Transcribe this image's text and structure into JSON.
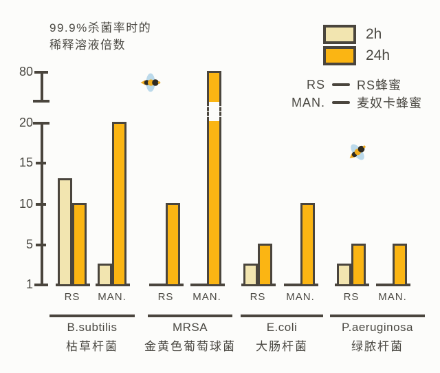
{
  "title": {
    "line1": "99.9%杀菌率时的",
    "line2": "稀释溶液倍数"
  },
  "legend": {
    "series": [
      {
        "label": "2h",
        "color": "#F2E5B0"
      },
      {
        "label": "24h",
        "color": "#FBB513"
      }
    ],
    "keys": [
      {
        "abbr": "RS",
        "name": "RS蜂蜜"
      },
      {
        "abbr": "MAN.",
        "name": "麦奴卡蜂蜜"
      }
    ]
  },
  "colors": {
    "bar_2h": "#F2E5B0",
    "bar_24h": "#FBB513",
    "axis": "#4A453D",
    "text": "#4A4842",
    "background": "#FCFCFA",
    "bee_wing": "#BBD9EA",
    "bee_dark": "#2F2B21",
    "bee_yellow": "#EDA81D"
  },
  "chart_data": {
    "type": "bar",
    "title": "99.9%杀菌率时的稀释溶液倍数",
    "xlabel": "",
    "ylabel": "稀释溶液倍数",
    "series": [
      "2h",
      "24h"
    ],
    "sub_categories": [
      "RS",
      "MAN."
    ],
    "y_ticks": [
      1,
      5,
      10,
      15,
      20,
      80
    ],
    "axis_break_between": [
      20,
      80
    ],
    "grid": false,
    "legend_position": "top-right",
    "groups": [
      {
        "name_en": "B.subtilis",
        "name_zh": "枯草杆菌",
        "values": {
          "RS": {
            "2h": 13,
            "24h": 10
          },
          "MAN.": {
            "2h": 3,
            "24h": 20
          }
        }
      },
      {
        "name_en": "MRSA",
        "name_zh": "金黄色葡萄球菌",
        "values": {
          "RS": {
            "2h": 1,
            "24h": 10
          },
          "MAN.": {
            "2h": 1,
            "24h": 80
          }
        }
      },
      {
        "name_en": "E.coli",
        "name_zh": "大肠杆菌",
        "values": {
          "RS": {
            "2h": 3,
            "24h": 5
          },
          "MAN.": {
            "2h": 1,
            "24h": 10
          }
        }
      },
      {
        "name_en": "P.aeruginosa",
        "name_zh": "绿脓杆菌",
        "values": {
          "RS": {
            "2h": 3,
            "24h": 5
          },
          "MAN.": {
            "2h": 1,
            "24h": 5
          }
        }
      }
    ]
  }
}
